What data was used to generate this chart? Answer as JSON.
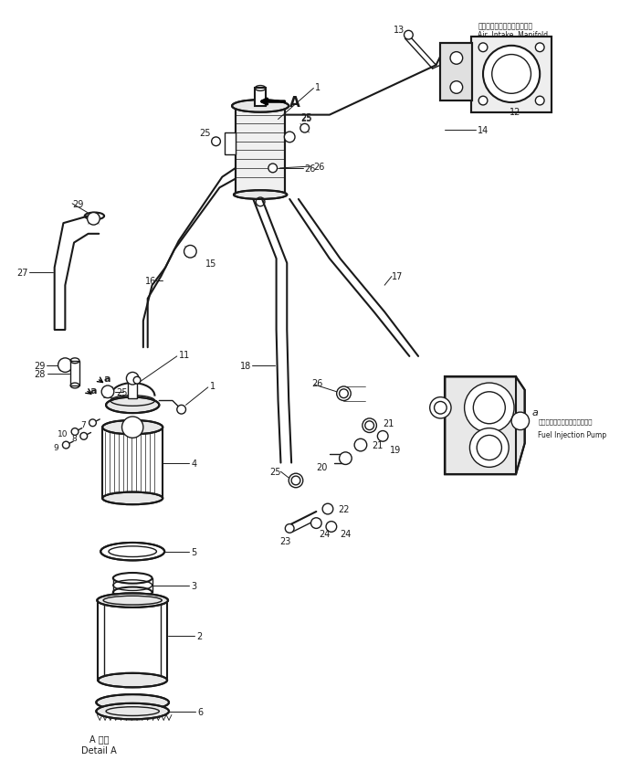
{
  "bg_color": "#ffffff",
  "line_color": "#1a1a1a",
  "fig_width": 6.79,
  "fig_height": 8.45,
  "dpi": 100,
  "air_intake_ja": "エアーインテークマニホルド",
  "air_intake_en": "Air  Intake  Manifold",
  "fuel_pump_ja": "フェルインジェクションポンプ",
  "fuel_pump_en": "Fuel Injection Pump",
  "detail_a_text": "A 詳細\nDetail A"
}
